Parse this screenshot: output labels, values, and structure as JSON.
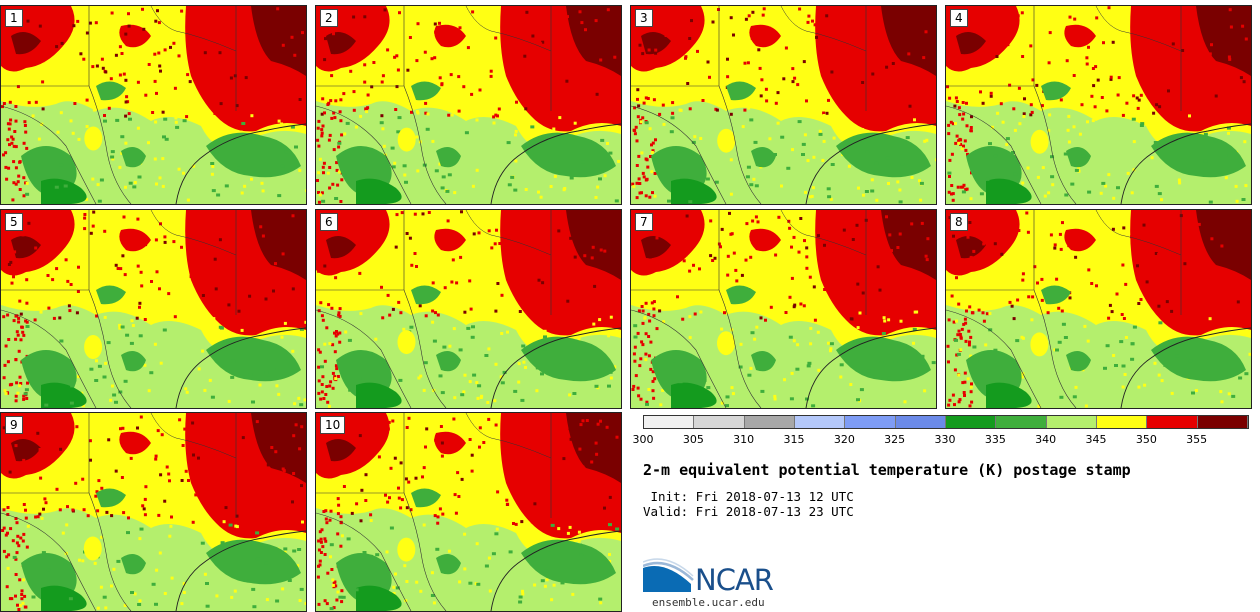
{
  "panels": [
    {
      "label": "1"
    },
    {
      "label": "2"
    },
    {
      "label": "3"
    },
    {
      "label": "4"
    },
    {
      "label": "5"
    },
    {
      "label": "6"
    },
    {
      "label": "7"
    },
    {
      "label": "8"
    },
    {
      "label": "9"
    },
    {
      "label": "10"
    }
  ],
  "colorbar": {
    "colors": [
      "#f0f0f0",
      "#d6d6d6",
      "#a8a8a8",
      "#b4c8fa",
      "#7e9cf5",
      "#6b8ae8",
      "#149b1e",
      "#3fae3c",
      "#b4ef6d",
      "#ffff14",
      "#e60000",
      "#7a0000"
    ],
    "ticks": [
      "300",
      "305",
      "310",
      "315",
      "320",
      "325",
      "330",
      "335",
      "340",
      "345",
      "350",
      "355"
    ]
  },
  "title": "2-m equivalent potential temperature (K) postage stamp",
  "init": " Init: Fri 2018-07-13 12 UTC",
  "valid": "Valid: Fri 2018-07-13 23 UTC",
  "logo": {
    "text": "NCAR",
    "site": "ensemble.ucar.edu"
  }
}
